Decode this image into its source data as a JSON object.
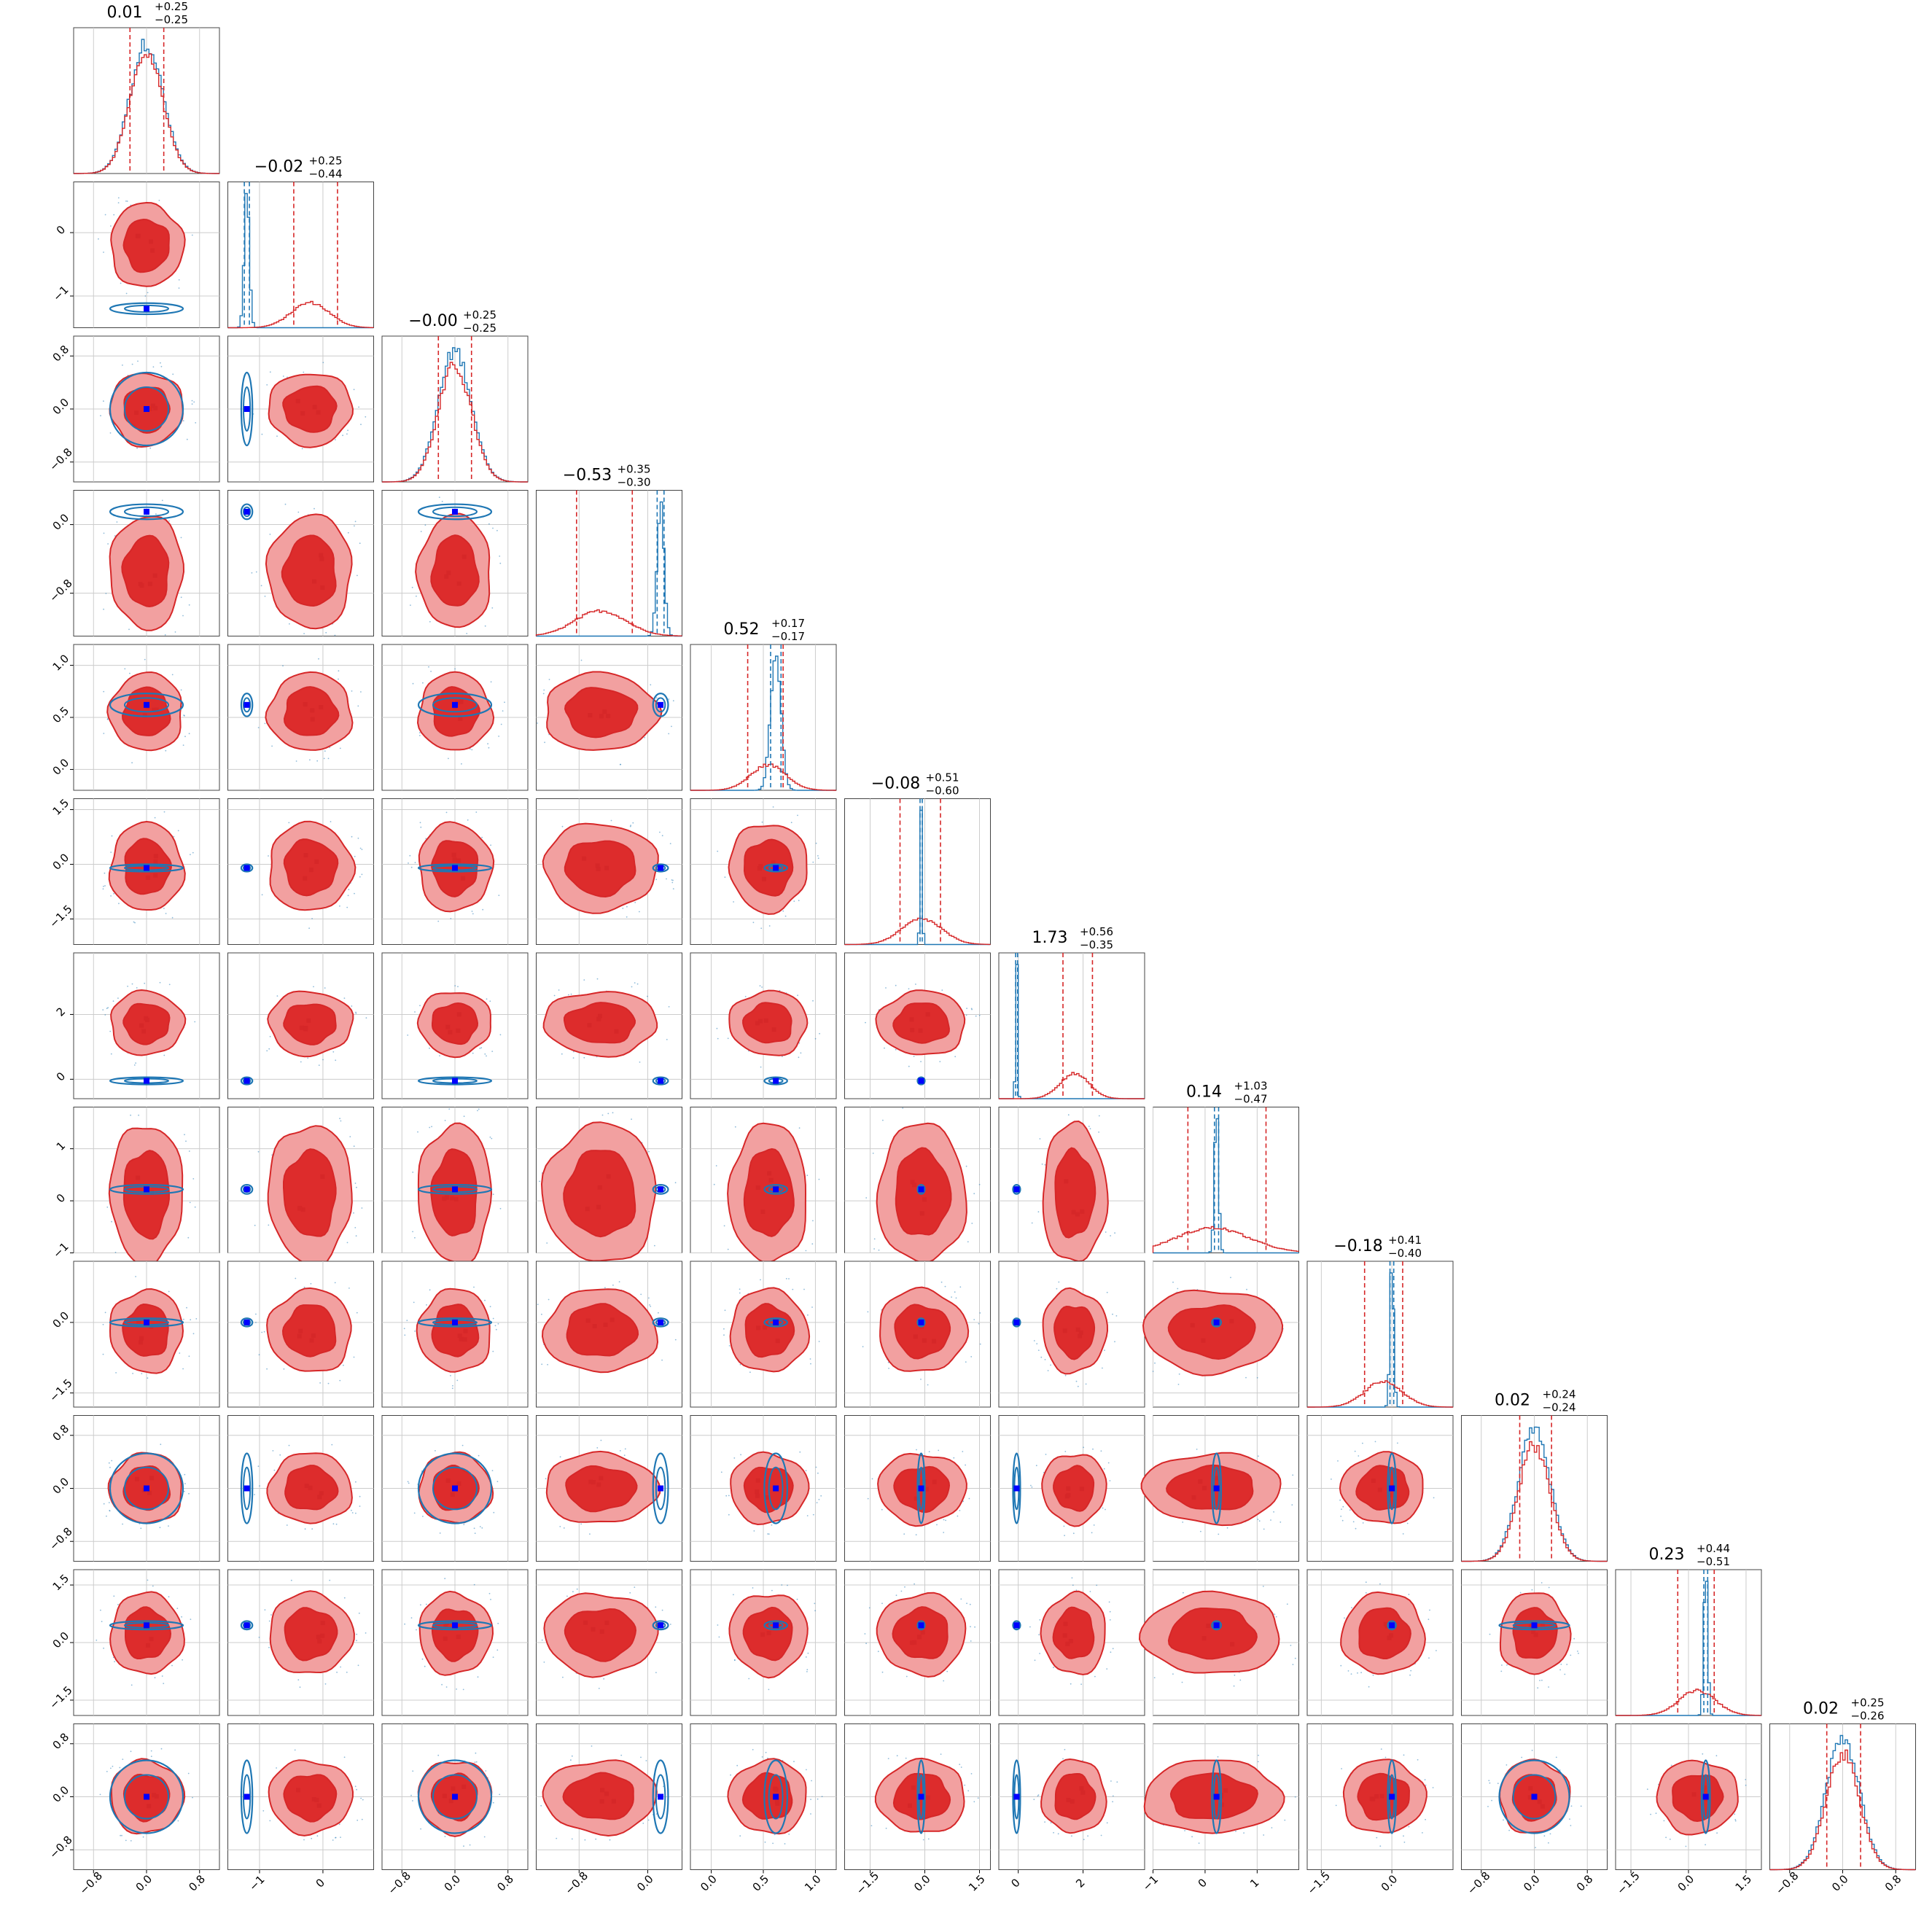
{
  "chart_data": {
    "type": "corner",
    "n_params": 12,
    "colors": {
      "posterior_a": "#d62728",
      "posterior_a_fill_outer": "#f2a0a0",
      "posterior_a_fill_inner": "#dd2c2c",
      "posterior_b": "#1f77b4",
      "truth_marker": "#0000ff",
      "grid": "#cccccc"
    },
    "parameters": [
      {
        "index": 0,
        "ylim": [
          -1.1,
          1.1
        ],
        "yticks": [],
        "xticks": [
          -0.8,
          0.0,
          0.8
        ],
        "xticklabels": [
          "−0.8",
          "0.0",
          "0.8"
        ],
        "red": {
          "center": 0.0,
          "sigma": 0.25
        },
        "blue": {
          "center": 0.0,
          "sigma": 0.25
        },
        "title_main": "0.01",
        "title_plus": "+0.25",
        "title_minus": "−0.25",
        "q16": -0.25,
        "q84": 0.26
      },
      {
        "index": 1,
        "ylim": [
          -1.5,
          0.8
        ],
        "yticks": [
          0,
          -1
        ],
        "yticklabels": [
          "0",
          "−1"
        ],
        "xticks": [
          -1,
          0
        ],
        "xticklabels": [
          "−1",
          "0"
        ],
        "red": {
          "center": -0.2,
          "sigma": 0.3
        },
        "blue": {
          "center": -1.2,
          "sigma": 0.04
        },
        "title_main": "−0.02",
        "title_plus": "+0.25",
        "title_minus": "−0.44",
        "q16": -0.46,
        "q84": 0.23
      },
      {
        "index": 2,
        "ylim": [
          -1.1,
          1.1
        ],
        "yticks": [
          0.8,
          0.0,
          -0.8
        ],
        "yticklabels": [
          "0.8",
          "0.0",
          "−0.8"
        ],
        "xticks": [
          -0.8,
          0.0,
          0.8
        ],
        "xticklabels": [
          "−0.8",
          "0.0",
          "0.8"
        ],
        "red": {
          "center": 0.0,
          "sigma": 0.25
        },
        "blue": {
          "center": 0.0,
          "sigma": 0.25
        },
        "title_main": "−0.00",
        "title_plus": "+0.25",
        "title_minus": "−0.25",
        "q16": -0.25,
        "q84": 0.25
      },
      {
        "index": 3,
        "ylim": [
          -1.3,
          0.4
        ],
        "yticks": [
          0.0,
          -0.8
        ],
        "yticklabels": [
          "0.0",
          "−0.8"
        ],
        "xticks": [
          -0.8,
          0.0
        ],
        "xticklabels": [
          "−0.8",
          "0.0"
        ],
        "red": {
          "center": -0.55,
          "sigma": 0.3
        },
        "blue": {
          "center": 0.15,
          "sigma": 0.04
        },
        "title_main": "−0.53",
        "title_plus": "+0.35",
        "title_minus": "−0.30",
        "q16": -0.83,
        "q84": -0.18
      },
      {
        "index": 4,
        "ylim": [
          -0.2,
          1.2
        ],
        "yticks": [
          1.0,
          0.5,
          0.0
        ],
        "yticklabels": [
          "1.0",
          "0.5",
          "0.0"
        ],
        "xticks": [
          0.0,
          0.5,
          1.0
        ],
        "xticklabels": [
          "0.0",
          "0.5",
          "1.0"
        ],
        "red": {
          "center": 0.55,
          "sigma": 0.17
        },
        "blue": {
          "center": 0.62,
          "sigma": 0.05
        },
        "title_main": "0.52",
        "title_plus": "+0.17",
        "title_minus": "−0.17",
        "q16": 0.35,
        "q84": 0.69
      },
      {
        "index": 5,
        "ylim": [
          -2.2,
          1.8
        ],
        "yticks": [
          1.5,
          0.0,
          -1.5
        ],
        "yticklabels": [
          "1.5",
          "0.0",
          "−1.5"
        ],
        "xticks": [
          -1.5,
          0.0,
          1.5
        ],
        "xticklabels": [
          "−1.5",
          "0.0",
          "1.5"
        ],
        "red": {
          "center": -0.08,
          "sigma": 0.55
        },
        "blue": {
          "center": -0.1,
          "sigma": 0.03
        },
        "title_main": "−0.08",
        "title_plus": "+0.51",
        "title_minus": "−0.60",
        "q16": -0.68,
        "q84": 0.43
      },
      {
        "index": 6,
        "ylim": [
          -0.6,
          3.9
        ],
        "yticks": [
          2,
          0
        ],
        "yticklabels": [
          "2",
          "0"
        ],
        "xticks": [
          0,
          2
        ],
        "xticklabels": [
          "0",
          "2"
        ],
        "red": {
          "center": 1.73,
          "sigma": 0.45
        },
        "blue": {
          "center": -0.05,
          "sigma": 0.03
        },
        "title_main": "1.73",
        "title_plus": "+0.56",
        "title_minus": "−0.35",
        "q16": 1.38,
        "q84": 2.29
      },
      {
        "index": 7,
        "ylim": [
          -1.0,
          1.8
        ],
        "yticks": [
          1,
          0,
          -1
        ],
        "yticklabels": [
          "1",
          "0",
          "−1"
        ],
        "xticks": [
          -1,
          0,
          1
        ],
        "xticklabels": [
          "−1",
          "0",
          "1"
        ],
        "red": {
          "center": 0.14,
          "sigma": 0.7
        },
        "blue": {
          "center": 0.22,
          "sigma": 0.04
        },
        "title_main": "0.14",
        "title_plus": "+1.03",
        "title_minus": "−0.47",
        "q16": -0.33,
        "q84": 1.17
      },
      {
        "index": 8,
        "ylim": [
          -1.8,
          1.3
        ],
        "yticks": [
          0.0,
          -1.5
        ],
        "yticklabels": [
          "0.0",
          "−1.5"
        ],
        "xticks": [
          -1.5,
          0.0
        ],
        "xticklabels": [
          "−1.5",
          "0.0"
        ],
        "red": {
          "center": -0.18,
          "sigma": 0.4
        },
        "blue": {
          "center": 0.0,
          "sigma": 0.04
        },
        "title_main": "−0.18",
        "title_plus": "+0.41",
        "title_minus": "−0.40",
        "q16": -0.58,
        "q84": 0.23
      },
      {
        "index": 9,
        "ylim": [
          -1.1,
          1.1
        ],
        "yticks": [
          0.8,
          0.0,
          -0.8
        ],
        "yticklabels": [
          "0.8",
          "0.0",
          "−0.8"
        ],
        "xticks": [
          -0.8,
          0.0,
          0.8
        ],
        "xticklabels": [
          "−0.8",
          "0.0",
          "0.8"
        ],
        "red": {
          "center": 0.0,
          "sigma": 0.24
        },
        "blue": {
          "center": 0.0,
          "sigma": 0.24
        },
        "title_main": "0.02",
        "title_plus": "+0.24",
        "title_minus": "−0.24",
        "q16": -0.22,
        "q84": 0.26
      },
      {
        "index": 10,
        "ylim": [
          -1.9,
          1.9
        ],
        "yticks": [
          1.5,
          0.0,
          -1.5
        ],
        "yticklabels": [
          "1.5",
          "0.0",
          "−1.5"
        ],
        "xticks": [
          -1.5,
          0.0,
          1.5
        ],
        "xticklabels": [
          "−1.5",
          "0.0",
          "1.5"
        ],
        "red": {
          "center": 0.23,
          "sigma": 0.48
        },
        "blue": {
          "center": 0.45,
          "sigma": 0.05
        },
        "title_main": "0.23",
        "title_plus": "+0.44",
        "title_minus": "−0.51",
        "q16": -0.28,
        "q84": 0.67
      },
      {
        "index": 11,
        "ylim": [
          -1.1,
          1.1
        ],
        "yticks": [
          0.8,
          0.0,
          -0.8
        ],
        "yticklabels": [
          "0.8",
          "0.0",
          "−0.8"
        ],
        "xticks": [
          -0.8,
          0.0,
          0.8
        ],
        "xticklabels": [
          "−0.8",
          "0.0",
          "0.8"
        ],
        "red": {
          "center": 0.0,
          "sigma": 0.25
        },
        "blue": {
          "center": 0.0,
          "sigma": 0.25
        },
        "title_main": "0.02",
        "title_plus": "+0.25",
        "title_minus": "−0.26",
        "q16": -0.24,
        "q84": 0.27
      }
    ]
  }
}
